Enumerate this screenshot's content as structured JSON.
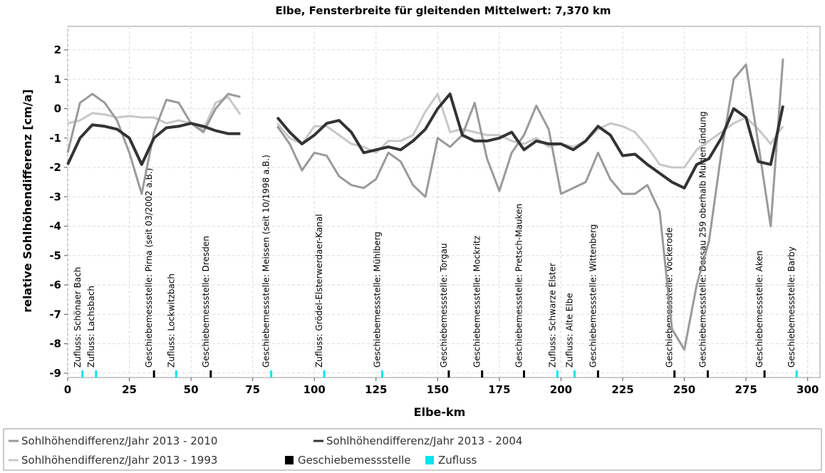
{
  "chart_data": {
    "type": "line",
    "title": "Elbe, Fensterbreite für gleitenden Mittelwert: 7,370 km",
    "x_label": "Elbe-km",
    "y_label": "relative Sohlhöhendifferenz [cm/a]",
    "xlim": [
      0,
      305
    ],
    "ylim": [
      -9.15,
      2.8
    ],
    "xticks": [
      0,
      25,
      50,
      75,
      100,
      125,
      150,
      175,
      200,
      225,
      250,
      275,
      300
    ],
    "yticks": [
      -9,
      -8,
      -7,
      -6,
      -5,
      -4,
      -3,
      -2,
      -1,
      0,
      1,
      2
    ],
    "grid": true,
    "x": [
      0,
      5,
      10,
      15,
      20,
      25,
      30,
      35,
      40,
      45,
      50,
      55,
      60,
      65,
      70,
      75,
      80,
      85,
      90,
      95,
      100,
      105,
      110,
      115,
      120,
      125,
      130,
      135,
      140,
      145,
      150,
      155,
      160,
      165,
      170,
      175,
      180,
      185,
      190,
      195,
      200,
      205,
      210,
      215,
      220,
      225,
      230,
      235,
      240,
      245,
      250,
      255,
      260,
      265,
      270,
      275,
      280,
      285,
      290
    ],
    "series": [
      {
        "name": "Sohlhöhendifferenz/Jahr 2013 - 2010",
        "color": "#9a9a9a",
        "values": [
          -1.5,
          0.2,
          0.5,
          0.2,
          -0.4,
          -1.5,
          -2.9,
          -0.8,
          0.3,
          0.2,
          -0.5,
          -0.8,
          0.0,
          0.5,
          0.4,
          null,
          null,
          -0.6,
          -1.2,
          -2.1,
          -1.5,
          -1.6,
          -2.3,
          -2.6,
          -2.7,
          -2.4,
          -1.5,
          -1.8,
          -2.6,
          -3.0,
          -1.0,
          -1.3,
          -0.9,
          0.2,
          -1.7,
          -2.8,
          -1.5,
          -0.9,
          0.1,
          -0.7,
          -2.9,
          -2.7,
          -2.5,
          -1.5,
          -2.4,
          -2.9,
          -2.9,
          -2.6,
          -3.5,
          -7.5,
          -8.2,
          -6.0,
          -4.5,
          -1.5,
          1.0,
          1.5,
          -1.2,
          -4.0,
          1.7
        ]
      },
      {
        "name": "Sohlhöhendifferenz/Jahr 2013 - 2004",
        "color": "#333333",
        "values": [
          -1.9,
          -1.0,
          -0.55,
          -0.6,
          -0.7,
          -1.0,
          -1.9,
          -1.0,
          -0.65,
          -0.6,
          -0.5,
          -0.6,
          -0.75,
          -0.85,
          -0.85,
          null,
          null,
          -0.3,
          -0.8,
          -1.2,
          -0.9,
          -0.5,
          -0.4,
          -0.8,
          -1.5,
          -1.4,
          -1.3,
          -1.4,
          -1.1,
          -0.7,
          0.0,
          0.5,
          -0.9,
          -1.1,
          -1.1,
          -1.0,
          -0.8,
          -1.4,
          -1.1,
          -1.2,
          -1.2,
          -1.4,
          -1.1,
          -0.6,
          -0.9,
          -1.6,
          -1.55,
          -1.9,
          -2.2,
          -2.5,
          -2.7,
          -1.9,
          -1.7,
          -1.0,
          0.0,
          -0.3,
          -1.8,
          -1.9,
          0.1
        ]
      },
      {
        "name": "Sohlhöhendifferenz/Jahr 2013 - 1993",
        "color": "#c8c8c8",
        "values": [
          -0.5,
          -0.4,
          -0.15,
          -0.2,
          -0.3,
          -0.25,
          -0.3,
          -0.3,
          -0.5,
          -0.4,
          -0.5,
          -0.7,
          0.2,
          0.4,
          -0.2,
          null,
          null,
          -0.5,
          -1.0,
          -1.2,
          -0.6,
          -0.6,
          -0.9,
          -1.2,
          -1.3,
          -1.5,
          -1.1,
          -1.1,
          -0.9,
          -0.1,
          0.5,
          -0.8,
          -0.7,
          -0.8,
          -0.9,
          -0.9,
          -1.1,
          -1.2,
          -1.0,
          -1.3,
          -1.2,
          -1.3,
          -1.1,
          -0.7,
          -0.5,
          -0.6,
          -0.8,
          -1.3,
          -1.9,
          -2.0,
          -2.0,
          -1.4,
          -1.1,
          -0.8,
          -0.5,
          -0.3,
          -0.7,
          -1.2,
          -0.6
        ]
      }
    ],
    "marker_legend": [
      {
        "name": "Geschiebemessstelle",
        "color": "#000000"
      },
      {
        "name": "Zufluss",
        "color": "#00e5ee"
      }
    ],
    "annotations": [
      {
        "label": "Zufluss: Schönaer Bach",
        "x": 6,
        "color": "#00e5ee"
      },
      {
        "label": "Zufluss: Lachsbach",
        "x": 11.5,
        "color": "#00e5ee"
      },
      {
        "label": "Geschiebemessstelle: Pirna (seit 03/2002 a.B.)",
        "x": 35,
        "color": "#000000"
      },
      {
        "label": "Zufluss: Lockwitzbach",
        "x": 44,
        "color": "#00e5ee"
      },
      {
        "label": "Geschiebemessstelle: Dresden",
        "x": 58,
        "color": "#000000"
      },
      {
        "label": "Geschiebemessstelle: Meissen (seit 10/1998 a.B.)",
        "x": 82.5,
        "color": "#00e5ee"
      },
      {
        "label": "Zufluss: Grödel-Elsterwerdaer-Kanal",
        "x": 104,
        "color": "#00e5ee"
      },
      {
        "label": "Geschiebemessstelle: Mühlberg",
        "x": 127.5,
        "color": "#00e5ee"
      },
      {
        "label": "Geschiebemessstelle: Torgau",
        "x": 154.5,
        "color": "#000000"
      },
      {
        "label": "Geschiebemessstelle: Mockritz",
        "x": 168,
        "color": "#000000"
      },
      {
        "label": "Geschiebemessstelle: Pretsch-Mauken",
        "x": 185,
        "color": "#000000"
      },
      {
        "label": "Zufluss: Schwarze Elster",
        "x": 198.5,
        "color": "#00e5ee"
      },
      {
        "label": "Zufluss: Alte Elbe",
        "x": 205.5,
        "color": "#00e5ee"
      },
      {
        "label": "Geschiebemessstelle: Wittenberg",
        "x": 215,
        "color": "#000000"
      },
      {
        "label": "Geschiebemessstelle: Vockerode",
        "x": 246,
        "color": "#000000"
      },
      {
        "label": "Geschiebemessstelle: Dessau 259 oberhalb Muldemündung",
        "x": 259.5,
        "color": "#000000"
      },
      {
        "label": "Geschiebemessstelle: Aken",
        "x": 282.5,
        "color": "#000000"
      },
      {
        "label": "Geschiebemessstelle: Barby",
        "x": 295.5,
        "color": "#00e5ee"
      }
    ]
  }
}
